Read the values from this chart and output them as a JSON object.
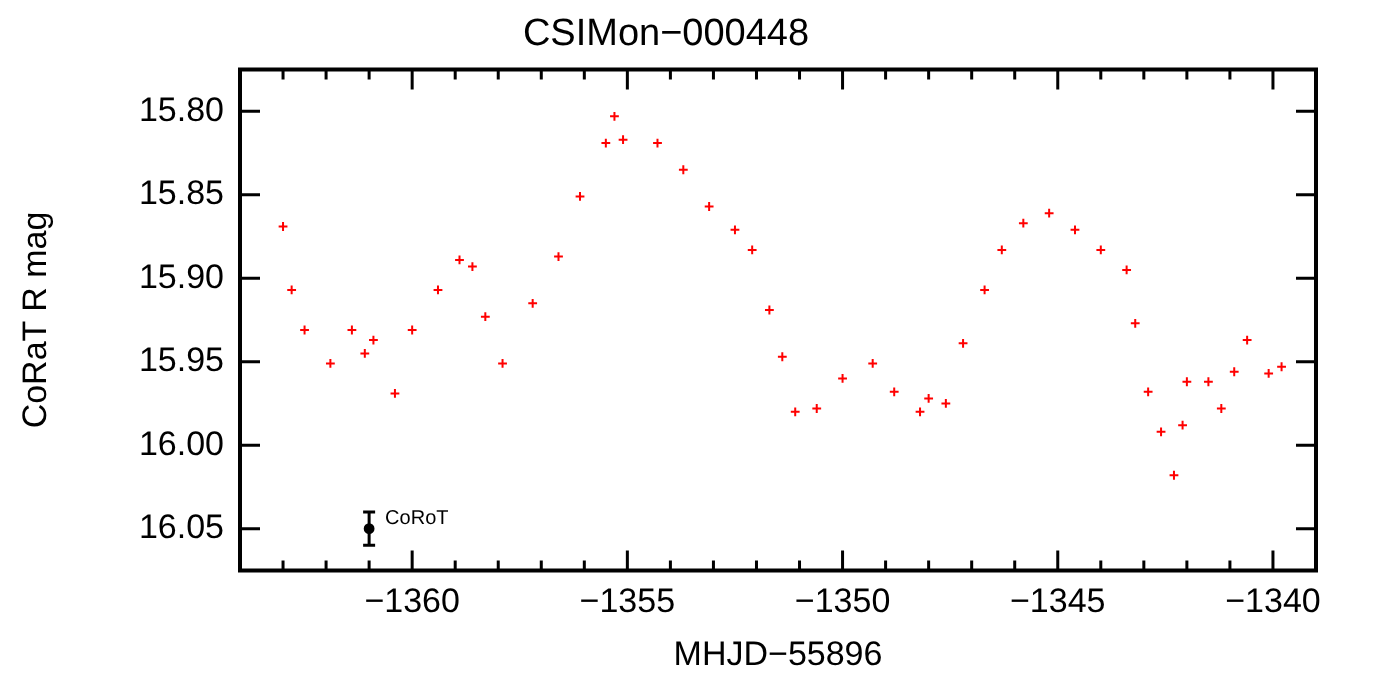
{
  "chart_data": {
    "type": "scatter",
    "title": "CSIMon−000448",
    "xlabel": "MHJD−55896",
    "ylabel": "CoRaT R mag",
    "xlim": [
      -1364,
      -1339
    ],
    "ylim": [
      16.075,
      15.775
    ],
    "xticks": [
      {
        "value": -1363,
        "label": null
      },
      {
        "value": -1362,
        "label": null
      },
      {
        "value": -1361,
        "label": null
      },
      {
        "value": -1360,
        "label": "−1360"
      },
      {
        "value": -1359,
        "label": null
      },
      {
        "value": -1358,
        "label": null
      },
      {
        "value": -1357,
        "label": null
      },
      {
        "value": -1356,
        "label": null
      },
      {
        "value": -1355,
        "label": "−1355"
      },
      {
        "value": -1354,
        "label": null
      },
      {
        "value": -1353,
        "label": null
      },
      {
        "value": -1352,
        "label": null
      },
      {
        "value": -1351,
        "label": null
      },
      {
        "value": -1350,
        "label": "−1350"
      },
      {
        "value": -1349,
        "label": null
      },
      {
        "value": -1348,
        "label": null
      },
      {
        "value": -1347,
        "label": null
      },
      {
        "value": -1346,
        "label": null
      },
      {
        "value": -1345,
        "label": "−1345"
      },
      {
        "value": -1344,
        "label": null
      },
      {
        "value": -1343,
        "label": null
      },
      {
        "value": -1342,
        "label": null
      },
      {
        "value": -1341,
        "label": null
      },
      {
        "value": -1340,
        "label": "−1340"
      }
    ],
    "yticks": [
      {
        "value": 15.8,
        "label": "15.80"
      },
      {
        "value": 15.85,
        "label": "15.85"
      },
      {
        "value": 15.9,
        "label": "15.90"
      },
      {
        "value": 15.95,
        "label": "15.95"
      },
      {
        "value": 16.0,
        "label": "16.00"
      },
      {
        "value": 16.05,
        "label": "16.05"
      }
    ],
    "grid": false,
    "legend": false,
    "marker": "cross",
    "series": [
      {
        "color": "#ff0000",
        "x": [
          -1363.0,
          -1362.8,
          -1362.5,
          -1361.9,
          -1361.4,
          -1361.1,
          -1360.9,
          -1360.4,
          -1360.0,
          -1359.4,
          -1358.9,
          -1358.6,
          -1358.3,
          -1357.9,
          -1357.2,
          -1356.6,
          -1356.1,
          -1355.5,
          -1355.3,
          -1355.1,
          -1354.3,
          -1353.7,
          -1353.1,
          -1352.5,
          -1352.1,
          -1351.7,
          -1351.4,
          -1351.1,
          -1350.6,
          -1350.0,
          -1349.3,
          -1348.8,
          -1348.2,
          -1348.0,
          -1347.6,
          -1347.2,
          -1346.7,
          -1346.3,
          -1345.8,
          -1345.2,
          -1344.6,
          -1344.0,
          -1343.4,
          -1343.2,
          -1342.9,
          -1342.6,
          -1342.3,
          -1342.1,
          -1342.0,
          -1341.5,
          -1341.2,
          -1340.9,
          -1340.6,
          -1340.1,
          -1339.8
        ],
        "values": [
          15.869,
          15.907,
          15.931,
          15.951,
          15.931,
          15.945,
          15.937,
          15.969,
          15.931,
          15.907,
          15.889,
          15.893,
          15.923,
          15.951,
          15.915,
          15.887,
          15.851,
          15.819,
          15.803,
          15.817,
          15.819,
          15.835,
          15.857,
          15.871,
          15.883,
          15.919,
          15.947,
          15.98,
          15.978,
          15.96,
          15.951,
          15.968,
          15.98,
          15.972,
          15.975,
          15.939,
          15.907,
          15.883,
          15.867,
          15.861,
          15.871,
          15.883,
          15.895,
          15.927,
          15.968,
          15.992,
          16.018,
          15.988,
          15.962,
          15.962,
          15.978,
          15.956,
          15.937,
          15.957,
          15.953
        ]
      },
      {
        "name": "CoRoT",
        "color": "#000000",
        "marker": "circle",
        "x": [
          -1361.0
        ],
        "values": [
          16.05
        ],
        "errors": [
          0.01
        ]
      }
    ]
  }
}
